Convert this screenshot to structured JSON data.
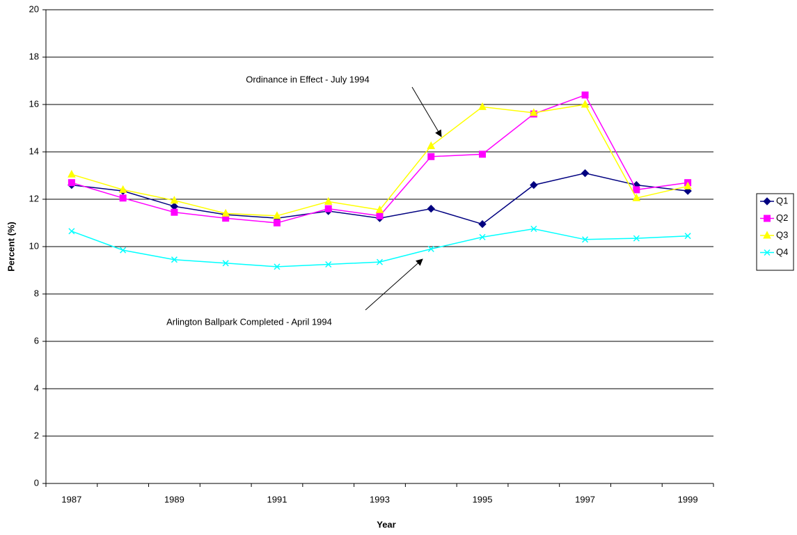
{
  "chart_data": {
    "type": "line",
    "x_label": "Year",
    "y_label": "Percent (%)",
    "categories": [
      "1987",
      null,
      "1989",
      null,
      "1991",
      null,
      "1993",
      null,
      "1995",
      null,
      "1997",
      null,
      "1999"
    ],
    "series": [
      {
        "name": "Q1",
        "color": "#000080",
        "marker": "diamond",
        "values": [
          12.6,
          12.35,
          11.7,
          11.35,
          11.2,
          11.5,
          11.2,
          11.6,
          10.95,
          12.6,
          13.1,
          12.6,
          12.35
        ]
      },
      {
        "name": "Q2",
        "color": "#FF00FF",
        "marker": "square",
        "values": [
          12.7,
          12.05,
          11.45,
          11.2,
          11.0,
          11.6,
          11.3,
          13.8,
          13.9,
          15.6,
          16.4,
          12.4,
          12.7
        ]
      },
      {
        "name": "Q3",
        "color": "#FFFF00",
        "marker": "triangle",
        "values": [
          13.05,
          12.4,
          11.95,
          11.4,
          11.3,
          11.9,
          11.55,
          14.25,
          15.9,
          15.65,
          16.0,
          12.05,
          12.55
        ]
      },
      {
        "name": "Q4",
        "color": "#00FFFF",
        "marker": "x",
        "values": [
          10.65,
          9.85,
          9.45,
          9.3,
          9.15,
          9.25,
          9.35,
          9.9,
          10.4,
          10.75,
          10.3,
          10.35,
          10.45
        ]
      }
    ],
    "ylim": [
      0,
      20
    ],
    "yticks": [
      0,
      2,
      4,
      6,
      8,
      10,
      12,
      14,
      16,
      18,
      20
    ],
    "grid": true,
    "legend": "right",
    "annotations": [
      "Ordinance in Effect - July 1994",
      "Arlington Ballpark Completed - April 1994"
    ]
  }
}
